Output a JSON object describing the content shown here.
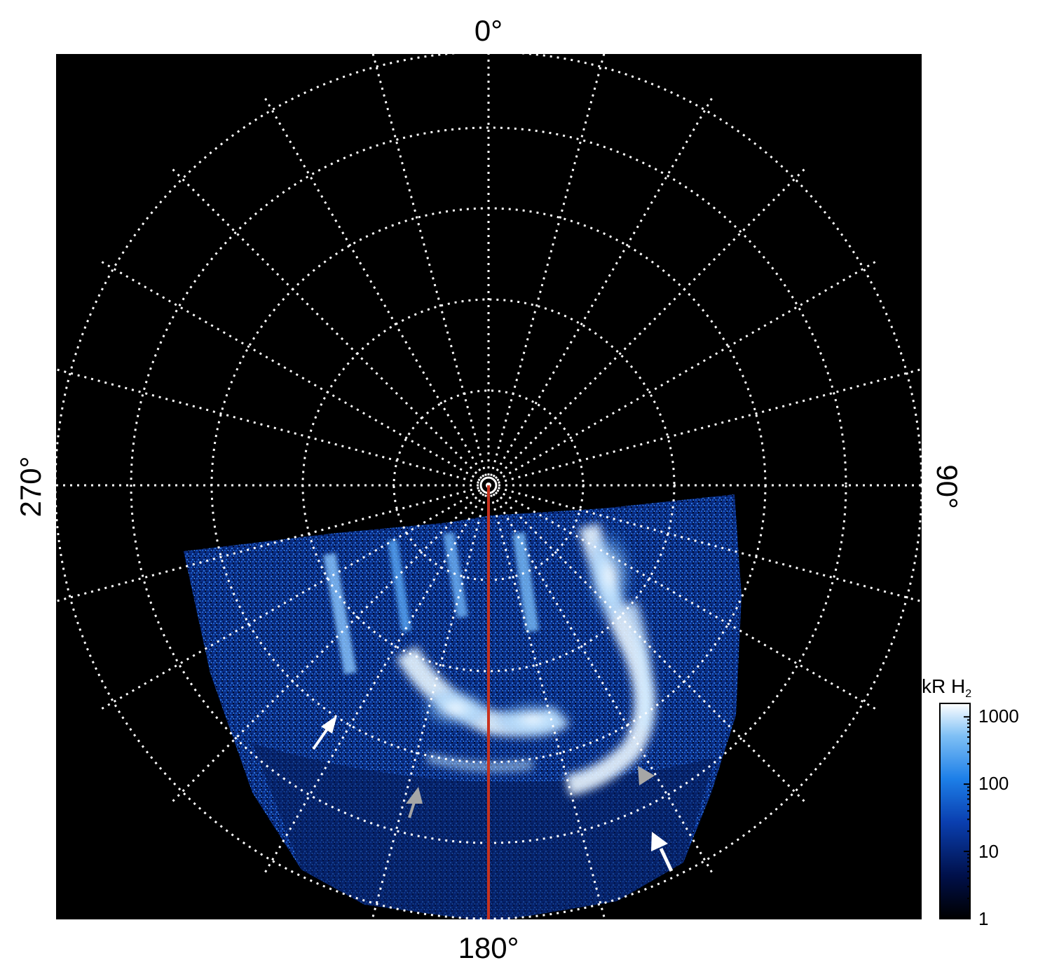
{
  "figure": {
    "labels": {
      "top": "0°",
      "bottom": "180°",
      "left": "270°",
      "right": "90°"
    },
    "colorbar": {
      "title_main": "kR H",
      "title_sub": "2",
      "ticks": [
        "1000",
        "100",
        "10",
        "1"
      ],
      "colormap": [
        "#000000",
        "#00104a",
        "#0a3fb0",
        "#1d7fe8",
        "#7fc0f5",
        "#ffffff"
      ]
    },
    "colors": {
      "background": "#000000",
      "grid": "#ffffff",
      "meridian_line": "#c8321e",
      "arrow_white": "#ffffff",
      "arrow_gray": "#a6a6a6"
    }
  }
}
